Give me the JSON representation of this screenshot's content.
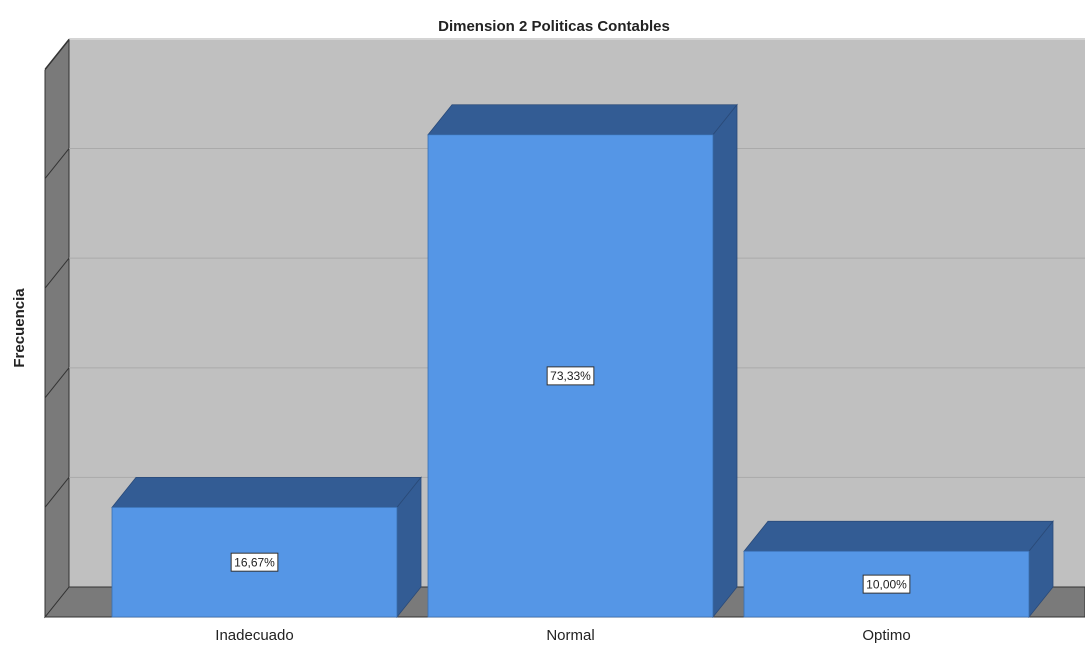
{
  "chart_data": {
    "type": "bar3d",
    "title": "Dimension 2 Politicas Contables",
    "y_label": "Frecuencia",
    "categories": [
      "Inadecuado",
      "Normal",
      "Optimo"
    ],
    "values": [
      16.67,
      73.33,
      10.0
    ],
    "value_labels": [
      "16,67%",
      "73,33%",
      "10,00%"
    ],
    "color": "#5596e6",
    "ylim": [
      0,
      83.33
    ],
    "yticks": [
      0,
      16.67,
      33.33,
      50,
      66.67,
      83.33
    ],
    "grid": true
  }
}
